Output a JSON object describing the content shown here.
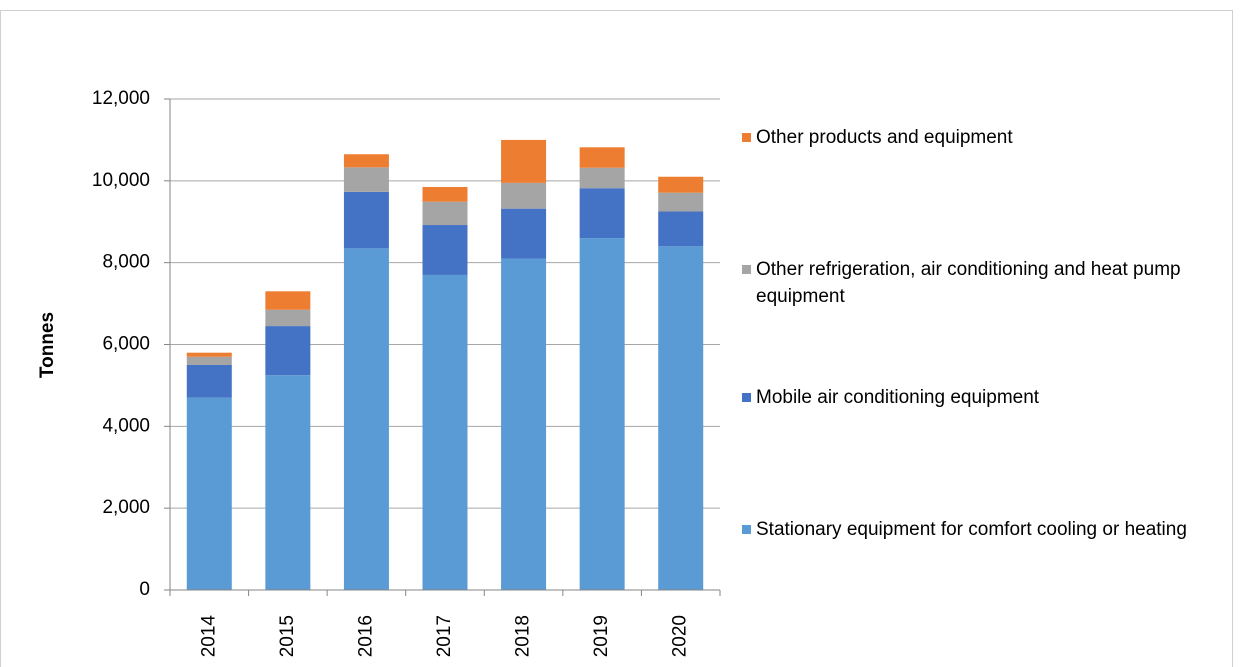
{
  "chart_data": {
    "type": "stacked_bar",
    "y_label": "Tonnes",
    "categories": [
      "2014",
      "2015",
      "2016",
      "2017",
      "2018",
      "2019",
      "2020"
    ],
    "series": [
      {
        "name": "Stationary equipment for comfort cooling or heating",
        "color": "#5b9bd5",
        "values": [
          4700,
          5250,
          8350,
          7700,
          8100,
          8600,
          8400
        ]
      },
      {
        "name": "Mobile air conditioning equipment",
        "color": "#4472c4",
        "values": [
          800,
          1200,
          1380,
          1220,
          1220,
          1220,
          850
        ]
      },
      {
        "name": "Other refrigeration, air conditioning and heat pump equipment",
        "color": "#a5a5a5",
        "values": [
          200,
          400,
          600,
          570,
          630,
          500,
          460
        ]
      },
      {
        "name": "Other products and equipment",
        "color": "#ed7d31",
        "values": [
          100,
          450,
          320,
          360,
          1050,
          500,
          390
        ]
      }
    ],
    "ylim": [
      0,
      12000
    ],
    "yticks": [
      0,
      {
        "value": 2000,
        "label": "2,000"
      },
      {
        "value": 4000,
        "label": "4,000"
      },
      {
        "value": 6000,
        "label": "6,000"
      },
      {
        "value": 8000,
        "label": "8,000"
      },
      {
        "value": 10000,
        "label": "10,000"
      },
      {
        "value": 12000,
        "label": "12,000"
      }
    ],
    "grid": true
  }
}
